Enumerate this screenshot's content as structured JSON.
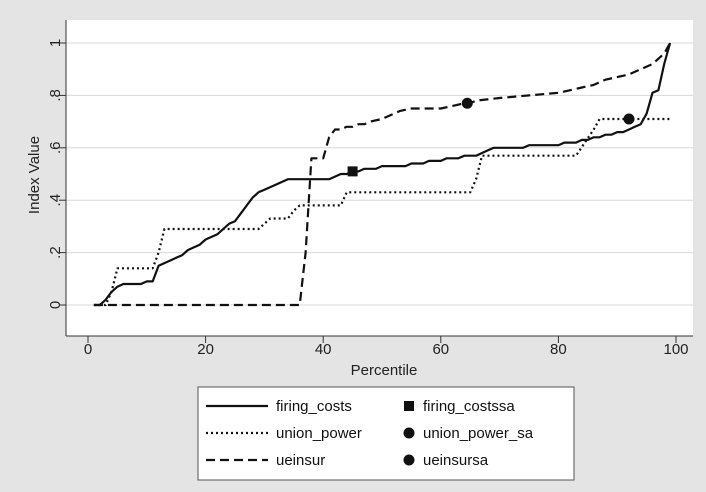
{
  "chart_data": {
    "type": "line",
    "title": "",
    "xlabel": "Percentile",
    "ylabel": "Index Value",
    "xlim": [
      0,
      100
    ],
    "ylim": [
      0,
      1
    ],
    "x_ticks": [
      0,
      20,
      40,
      60,
      80,
      100
    ],
    "x_tick_labels": [
      "0",
      "20",
      "40",
      "60",
      "80",
      "100"
    ],
    "y_ticks": [
      0,
      0.2,
      0.4,
      0.6,
      0.8,
      1
    ],
    "y_tick_labels": [
      "0",
      ".2",
      ".4",
      ".6",
      ".8",
      "1"
    ],
    "grid": "horizontal",
    "legend_position": "bottom",
    "series": [
      {
        "name": "firing_costs",
        "kind": "line",
        "style": "solid",
        "color": "#111111",
        "x": [
          1,
          2,
          3,
          4,
          5,
          6,
          7,
          8,
          9,
          10,
          11,
          12,
          13,
          14,
          15,
          16,
          17,
          18,
          19,
          20,
          21,
          22,
          23,
          24,
          25,
          26,
          27,
          28,
          29,
          30,
          31,
          32,
          33,
          34,
          35,
          36,
          37,
          38,
          39,
          40,
          41,
          42,
          43,
          44,
          45,
          46,
          47,
          48,
          49,
          50,
          51,
          52,
          53,
          54,
          55,
          56,
          57,
          58,
          59,
          60,
          61,
          62,
          63,
          64,
          65,
          66,
          67,
          68,
          69,
          70,
          71,
          72,
          73,
          74,
          75,
          76,
          77,
          78,
          79,
          80,
          81,
          82,
          83,
          84,
          85,
          86,
          87,
          88,
          89,
          90,
          91,
          92,
          93,
          94,
          95,
          96,
          97,
          98,
          99
        ],
        "y": [
          0,
          0,
          0.02,
          0.05,
          0.07,
          0.08,
          0.08,
          0.08,
          0.08,
          0.09,
          0.09,
          0.15,
          0.16,
          0.17,
          0.18,
          0.19,
          0.21,
          0.22,
          0.23,
          0.25,
          0.26,
          0.27,
          0.29,
          0.31,
          0.32,
          0.35,
          0.38,
          0.41,
          0.43,
          0.44,
          0.45,
          0.46,
          0.47,
          0.48,
          0.48,
          0.48,
          0.48,
          0.48,
          0.48,
          0.48,
          0.48,
          0.49,
          0.5,
          0.5,
          0.51,
          0.51,
          0.52,
          0.52,
          0.52,
          0.53,
          0.53,
          0.53,
          0.53,
          0.53,
          0.54,
          0.54,
          0.54,
          0.55,
          0.55,
          0.55,
          0.56,
          0.56,
          0.56,
          0.57,
          0.57,
          0.57,
          0.58,
          0.59,
          0.6,
          0.6,
          0.6,
          0.6,
          0.6,
          0.6,
          0.61,
          0.61,
          0.61,
          0.61,
          0.61,
          0.61,
          0.62,
          0.62,
          0.62,
          0.63,
          0.63,
          0.64,
          0.64,
          0.65,
          0.65,
          0.66,
          0.66,
          0.67,
          0.68,
          0.69,
          0.73,
          0.81,
          0.82,
          0.92,
          1
        ]
      },
      {
        "name": "union_power",
        "kind": "line",
        "style": "dotted",
        "color": "#111111",
        "x": [
          1,
          3,
          4,
          5,
          10,
          11,
          12,
          13,
          28,
          29,
          31,
          33,
          34,
          35,
          36,
          37,
          38,
          43,
          44,
          65,
          66,
          67,
          82,
          83,
          86,
          87,
          99
        ],
        "y": [
          0,
          0,
          0.05,
          0.14,
          0.14,
          0.14,
          0.2,
          0.29,
          0.29,
          0.29,
          0.33,
          0.33,
          0.33,
          0.36,
          0.38,
          0.38,
          0.38,
          0.38,
          0.43,
          0.43,
          0.48,
          0.57,
          0.57,
          0.57,
          0.67,
          0.71,
          0.71
        ]
      },
      {
        "name": "ueinsur",
        "kind": "line",
        "style": "dashed",
        "color": "#111111",
        "x": [
          1,
          36,
          37,
          38,
          40,
          41,
          42,
          43,
          44,
          45,
          46,
          47,
          48,
          50,
          53,
          55,
          60,
          62,
          64,
          65,
          66,
          70,
          75,
          80,
          82,
          84,
          86,
          88,
          90,
          92,
          94,
          96,
          98,
          99
        ],
        "y": [
          0,
          0,
          0.2,
          0.56,
          0.56,
          0.64,
          0.67,
          0.67,
          0.68,
          0.68,
          0.69,
          0.69,
          0.7,
          0.71,
          0.74,
          0.75,
          0.75,
          0.76,
          0.77,
          0.77,
          0.78,
          0.79,
          0.8,
          0.81,
          0.82,
          0.83,
          0.84,
          0.86,
          0.87,
          0.88,
          0.9,
          0.92,
          0.96,
          1
        ]
      },
      {
        "name": "firing_costssa",
        "kind": "marker",
        "marker": "square",
        "color": "#111111",
        "x": [
          45
        ],
        "y": [
          0.51
        ]
      },
      {
        "name": "union_power_sa",
        "kind": "marker",
        "marker": "circle",
        "color": "#111111",
        "x": [
          92
        ],
        "y": [
          0.71
        ]
      },
      {
        "name": "ueinsursa",
        "kind": "marker",
        "marker": "circle",
        "color": "#111111",
        "x": [
          64.5
        ],
        "y": [
          0.77
        ]
      }
    ]
  }
}
